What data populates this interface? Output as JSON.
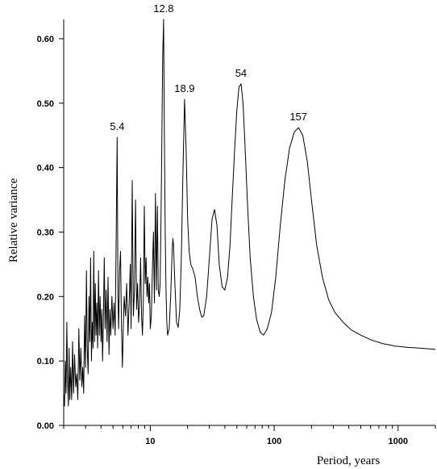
{
  "chart_data": {
    "type": "line",
    "xlabel": "Period, years",
    "ylabel": "Relative variance",
    "x_scale": "log",
    "xlim": [
      2,
      2000
    ],
    "ylim": [
      0,
      0.63
    ],
    "x_ticks": [
      {
        "value": 10,
        "label": "10"
      },
      {
        "value": 100,
        "label": "100"
      },
      {
        "value": 1000,
        "label": "1000"
      }
    ],
    "y_ticks": [
      {
        "value": 0.0,
        "label": "0.00"
      },
      {
        "value": 0.1,
        "label": "0.10"
      },
      {
        "value": 0.2,
        "label": "0.20"
      },
      {
        "value": 0.3,
        "label": "0.30"
      },
      {
        "value": 0.4,
        "label": "0.40"
      },
      {
        "value": 0.5,
        "label": "0.50"
      },
      {
        "value": 0.6,
        "label": "0.60"
      }
    ],
    "annotations": [
      {
        "text": "5.4",
        "x": 5.4,
        "y": 0.447
      },
      {
        "text": "12.8",
        "x": 12.8,
        "y": 0.63
      },
      {
        "text": "18.9",
        "x": 18.9,
        "y": 0.506
      },
      {
        "text": "54",
        "x": 54,
        "y": 0.53
      },
      {
        "text": "157",
        "x": 157,
        "y": 0.462
      }
    ],
    "grid": false,
    "series": [
      {
        "color": "#000000",
        "points": [
          [
            2.0,
            0.05
          ],
          [
            2.03,
            0.03
          ],
          [
            2.06,
            0.1
          ],
          [
            2.09,
            0.05
          ],
          [
            2.12,
            0.16
          ],
          [
            2.15,
            0.07
          ],
          [
            2.18,
            0.03
          ],
          [
            2.21,
            0.12
          ],
          [
            2.24,
            0.04
          ],
          [
            2.28,
            0.09
          ],
          [
            2.32,
            0.04
          ],
          [
            2.36,
            0.13
          ],
          [
            2.4,
            0.05
          ],
          [
            2.45,
            0.11
          ],
          [
            2.5,
            0.06
          ],
          [
            2.55,
            0.08
          ],
          [
            2.6,
            0.04
          ],
          [
            2.65,
            0.15
          ],
          [
            2.7,
            0.07
          ],
          [
            2.75,
            0.12
          ],
          [
            2.8,
            0.06
          ],
          [
            2.85,
            0.09
          ],
          [
            2.9,
            0.05
          ],
          [
            2.95,
            0.17
          ],
          [
            3.0,
            0.09
          ],
          [
            3.05,
            0.24
          ],
          [
            3.1,
            0.12
          ],
          [
            3.15,
            0.08
          ],
          [
            3.2,
            0.2
          ],
          [
            3.25,
            0.13
          ],
          [
            3.3,
            0.26
          ],
          [
            3.35,
            0.1
          ],
          [
            3.4,
            0.16
          ],
          [
            3.45,
            0.12
          ],
          [
            3.5,
            0.27
          ],
          [
            3.55,
            0.13
          ],
          [
            3.6,
            0.22
          ],
          [
            3.65,
            0.14
          ],
          [
            3.7,
            0.19
          ],
          [
            3.76,
            0.12
          ],
          [
            3.82,
            0.24
          ],
          [
            3.88,
            0.14
          ],
          [
            3.94,
            0.2
          ],
          [
            4.0,
            0.13
          ],
          [
            4.06,
            0.18
          ],
          [
            4.12,
            0.1
          ],
          [
            4.18,
            0.16
          ],
          [
            4.25,
            0.26
          ],
          [
            4.32,
            0.15
          ],
          [
            4.4,
            0.21
          ],
          [
            4.48,
            0.13
          ],
          [
            4.56,
            0.23
          ],
          [
            4.64,
            0.11
          ],
          [
            4.72,
            0.18
          ],
          [
            4.8,
            0.14
          ],
          [
            4.9,
            0.2
          ],
          [
            5.0,
            0.15
          ],
          [
            5.1,
            0.19
          ],
          [
            5.2,
            0.14
          ],
          [
            5.3,
            0.28
          ],
          [
            5.4,
            0.447
          ],
          [
            5.48,
            0.2
          ],
          [
            5.55,
            0.15
          ],
          [
            5.65,
            0.24
          ],
          [
            5.75,
            0.27
          ],
          [
            5.85,
            0.16
          ],
          [
            5.95,
            0.09
          ],
          [
            6.05,
            0.15
          ],
          [
            6.15,
            0.2
          ],
          [
            6.3,
            0.17
          ],
          [
            6.45,
            0.22
          ],
          [
            6.6,
            0.14
          ],
          [
            6.75,
            0.19
          ],
          [
            6.9,
            0.25
          ],
          [
            7.0,
            0.15
          ],
          [
            7.15,
            0.38
          ],
          [
            7.3,
            0.17
          ],
          [
            7.45,
            0.21
          ],
          [
            7.6,
            0.35
          ],
          [
            7.75,
            0.18
          ],
          [
            7.9,
            0.22
          ],
          [
            8.05,
            0.16
          ],
          [
            8.2,
            0.19
          ],
          [
            8.35,
            0.26
          ],
          [
            8.5,
            0.17
          ],
          [
            8.65,
            0.14
          ],
          [
            8.8,
            0.2
          ],
          [
            8.95,
            0.34
          ],
          [
            9.1,
            0.22
          ],
          [
            9.25,
            0.26
          ],
          [
            9.4,
            0.2
          ],
          [
            9.55,
            0.23
          ],
          [
            9.7,
            0.19
          ],
          [
            9.85,
            0.22
          ],
          [
            10.0,
            0.15
          ],
          [
            10.2,
            0.17
          ],
          [
            10.4,
            0.24
          ],
          [
            10.6,
            0.3
          ],
          [
            10.8,
            0.19
          ],
          [
            11.0,
            0.36
          ],
          [
            11.2,
            0.21
          ],
          [
            11.4,
            0.34
          ],
          [
            11.6,
            0.21
          ],
          [
            11.8,
            0.2
          ],
          [
            12.0,
            0.22
          ],
          [
            12.2,
            0.32
          ],
          [
            12.4,
            0.45
          ],
          [
            12.6,
            0.57
          ],
          [
            12.8,
            0.63
          ],
          [
            13.0,
            0.45
          ],
          [
            13.2,
            0.3
          ],
          [
            13.4,
            0.21
          ],
          [
            13.6,
            0.16
          ],
          [
            13.8,
            0.14
          ],
          [
            14.2,
            0.15
          ],
          [
            14.6,
            0.2
          ],
          [
            15.0,
            0.27
          ],
          [
            15.2,
            0.29
          ],
          [
            15.4,
            0.28
          ],
          [
            15.8,
            0.22
          ],
          [
            16.3,
            0.16
          ],
          [
            16.8,
            0.152
          ],
          [
            17.3,
            0.18
          ],
          [
            17.8,
            0.26
          ],
          [
            18.3,
            0.38
          ],
          [
            18.9,
            0.506
          ],
          [
            19.5,
            0.42
          ],
          [
            20.0,
            0.32
          ],
          [
            20.6,
            0.27
          ],
          [
            21.2,
            0.25
          ],
          [
            22.0,
            0.243
          ],
          [
            23.0,
            0.23
          ],
          [
            24.0,
            0.2
          ],
          [
            25.0,
            0.18
          ],
          [
            26.0,
            0.168
          ],
          [
            27.0,
            0.17
          ],
          [
            28.5,
            0.2
          ],
          [
            30.0,
            0.26
          ],
          [
            31.5,
            0.32
          ],
          [
            33.0,
            0.335
          ],
          [
            34.5,
            0.31
          ],
          [
            36.0,
            0.25
          ],
          [
            38.0,
            0.215
          ],
          [
            40.0,
            0.21
          ],
          [
            42.0,
            0.23
          ],
          [
            44.0,
            0.28
          ],
          [
            46.0,
            0.36
          ],
          [
            48.0,
            0.43
          ],
          [
            50.0,
            0.49
          ],
          [
            52.0,
            0.525
          ],
          [
            54.0,
            0.53
          ],
          [
            56.0,
            0.5
          ],
          [
            58.0,
            0.44
          ],
          [
            61.0,
            0.34
          ],
          [
            64.0,
            0.26
          ],
          [
            68.0,
            0.2
          ],
          [
            72.0,
            0.165
          ],
          [
            77.0,
            0.145
          ],
          [
            82.0,
            0.14
          ],
          [
            88.0,
            0.15
          ],
          [
            95.0,
            0.175
          ],
          [
            103.0,
            0.23
          ],
          [
            112.0,
            0.31
          ],
          [
            122.0,
            0.38
          ],
          [
            133.0,
            0.43
          ],
          [
            145.0,
            0.455
          ],
          [
            157.0,
            0.462
          ],
          [
            170.0,
            0.45
          ],
          [
            185.0,
            0.41
          ],
          [
            200.0,
            0.35
          ],
          [
            220.0,
            0.28
          ],
          [
            245.0,
            0.23
          ],
          [
            275.0,
            0.195
          ],
          [
            310.0,
            0.175
          ],
          [
            360.0,
            0.16
          ],
          [
            420.0,
            0.148
          ],
          [
            500.0,
            0.14
          ],
          [
            600.0,
            0.133
          ],
          [
            750.0,
            0.127
          ],
          [
            950.0,
            0.123
          ],
          [
            1200.0,
            0.121
          ],
          [
            1500.0,
            0.12
          ],
          [
            2000.0,
            0.118
          ]
        ]
      }
    ]
  }
}
